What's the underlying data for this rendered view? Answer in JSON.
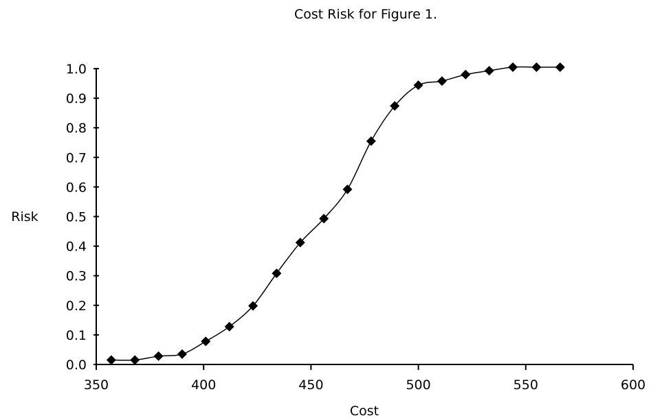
{
  "chart_data": {
    "type": "line",
    "title": "Cost Risk for Figure 1.",
    "xlabel": "Cost",
    "ylabel": "Risk",
    "xlim": [
      350,
      600
    ],
    "ylim": [
      0,
      1.0
    ],
    "x_ticks": [
      "350",
      "400",
      "450",
      "500",
      "550",
      "600"
    ],
    "y_ticks": [
      "0.0",
      "0.1",
      "0.2",
      "0.3",
      "0.4",
      "0.5",
      "0.6",
      "0.7",
      "0.8",
      "0.9",
      "1.0"
    ],
    "grid": false,
    "legend": "none",
    "marker": "diamond",
    "line_color": "#000000",
    "marker_color": "#000000",
    "series": [
      {
        "x": [
          357,
          368,
          379,
          390,
          401,
          412,
          423,
          434,
          445,
          456,
          467,
          478,
          489,
          500,
          511,
          522,
          533,
          544,
          555,
          566
        ],
        "y": [
          0.015,
          0.015,
          0.028,
          0.035,
          0.078,
          0.128,
          0.198,
          0.308,
          0.412,
          0.493,
          0.592,
          0.755,
          0.874,
          0.944,
          0.958,
          0.98,
          0.993,
          1.005,
          1.005,
          1.005
        ]
      }
    ]
  }
}
